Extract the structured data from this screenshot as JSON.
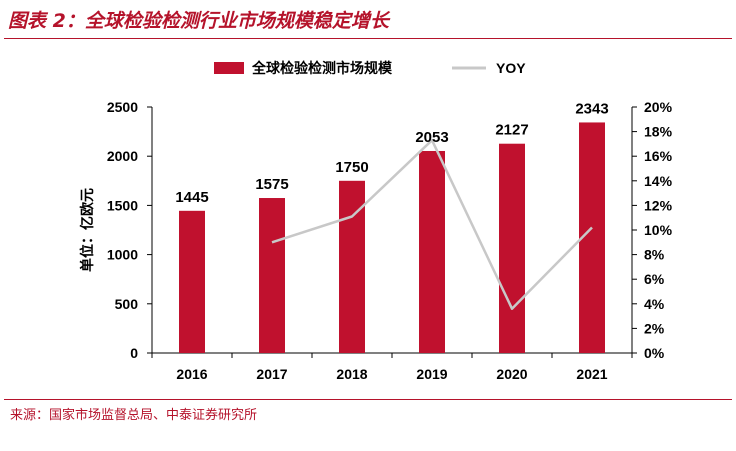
{
  "header": {
    "title": "图表 2：全球检验检测行业市场规模稳定增长"
  },
  "footer": {
    "source": "来源：国家市场监督总局、中泰证券研究所"
  },
  "colors": {
    "accent": "#b5132b",
    "bar": "#c0112e",
    "line": "#c8c8c8"
  },
  "chart_data": {
    "type": "bar",
    "categories": [
      "2016",
      "2017",
      "2018",
      "2019",
      "2020",
      "2021"
    ],
    "series": [
      {
        "name": "全球检验检测市场规模",
        "type": "bar",
        "axis": "left",
        "values": [
          1445,
          1575,
          1750,
          2053,
          2127,
          2343
        ]
      },
      {
        "name": "YOY",
        "type": "line",
        "axis": "right",
        "values": [
          null,
          0.09,
          0.111,
          0.173,
          0.036,
          0.102
        ]
      }
    ],
    "ylabel": "单位：亿欧元",
    "ylim": [
      0,
      2500
    ],
    "yticks": [
      "0",
      "500",
      "1000",
      "1500",
      "2000",
      "2500"
    ],
    "y2lim": [
      0,
      0.2
    ],
    "y2ticks": [
      "0%",
      "2%",
      "4%",
      "6%",
      "8%",
      "10%",
      "12%",
      "14%",
      "16%",
      "18%",
      "20%"
    ],
    "data_labels": [
      "1445",
      "1575",
      "1750",
      "2053",
      "2127",
      "2343"
    ],
    "legend_position": "top",
    "grid": false
  }
}
